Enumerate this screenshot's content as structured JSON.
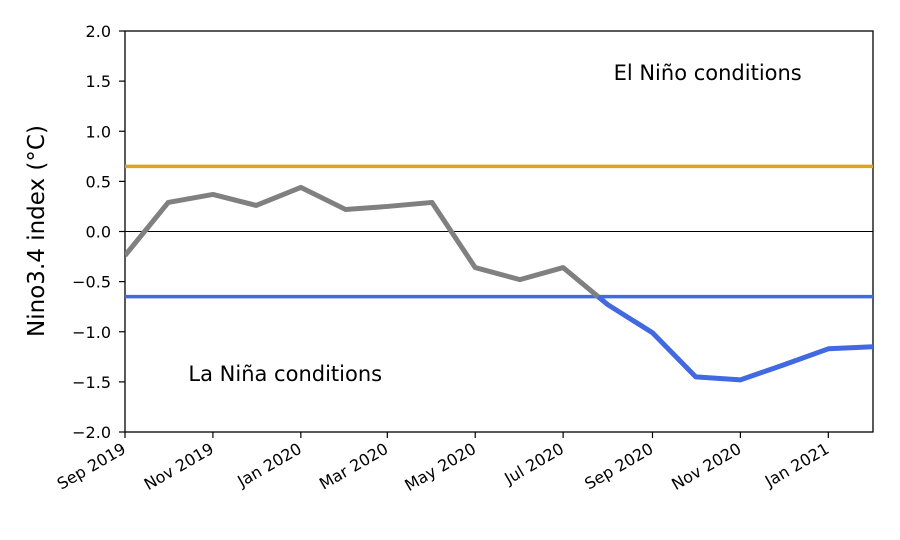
{
  "chart_data": {
    "type": "line",
    "ylabel": "Nino3.4 index (°C)",
    "ylim": [
      -2.0,
      2.0
    ],
    "xlim": [
      "2019-09",
      "2021-02"
    ],
    "grid": false,
    "y_ticks": [
      "2.0",
      "1.5",
      "1.0",
      "0.5",
      "0.0",
      "−0.5",
      "−1.0",
      "−1.5",
      "−2.0"
    ],
    "y_tick_values": [
      2.0,
      1.5,
      1.0,
      0.5,
      0.0,
      -0.5,
      -1.0,
      -1.5,
      -2.0
    ],
    "x_ticks": [
      "Sep 2019",
      "Nov 2019",
      "Jan 2020",
      "Mar 2020",
      "May 2020",
      "Jul 2020",
      "Sep 2020",
      "Nov 2020",
      "Jan 2021"
    ],
    "x_tick_dates": [
      "2019-09",
      "2019-11",
      "2020-01",
      "2020-03",
      "2020-05",
      "2020-07",
      "2020-09",
      "2020-11",
      "2021-01"
    ],
    "series": [
      {
        "x": [
          "2019-09",
          "2019-10",
          "2019-11",
          "2019-12",
          "2020-01",
          "2020-02",
          "2020-03",
          "2020-04",
          "2020-05",
          "2020-06",
          "2020-07",
          "2020-08",
          "2020-09",
          "2020-10",
          "2020-11",
          "2020-12",
          "2021-01",
          "2021-02"
        ],
        "values": [
          -0.24,
          0.29,
          0.37,
          0.26,
          0.44,
          0.22,
          0.25,
          0.29,
          -0.36,
          -0.48,
          -0.36,
          -0.73,
          -1.01,
          -1.45,
          -1.48,
          -1.33,
          -1.17,
          -1.15
        ],
        "color_above_threshold": "#808080",
        "color_below_threshold": "#4169e1",
        "threshold": -0.65
      }
    ],
    "reference_lines": [
      {
        "y": 0.65,
        "color": "#daa520"
      },
      {
        "y": 0.0,
        "color": "#000000"
      },
      {
        "y": -0.65,
        "color": "#4169e1"
      }
    ],
    "annotations": [
      {
        "text": "El Niño conditions",
        "x": "2020-08-05",
        "y": 1.58
      },
      {
        "text": "La Niña conditions",
        "x": "2019-10-15",
        "y": -1.42
      }
    ]
  }
}
